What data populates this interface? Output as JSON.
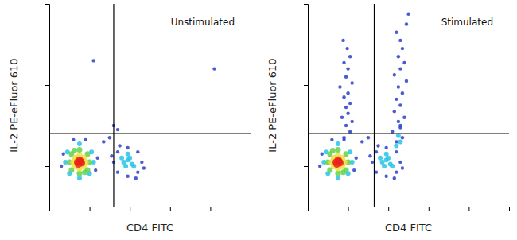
{
  "chart_data": [
    {
      "type": "scatter",
      "annotation": "Unstimulated",
      "xlabel": "CD4 FITC",
      "ylabel": "IL-2 PE-eFluor 610",
      "xlim": [
        0,
        5
      ],
      "ylim": [
        0,
        5
      ],
      "xticks": [
        1,
        2,
        3,
        4,
        5
      ],
      "yticks": [
        1,
        2,
        3,
        4,
        5
      ],
      "tick_labels": false,
      "quadrant": {
        "x": 1.6,
        "y": 1.8
      },
      "marker": "circle",
      "series": [
        {
          "color": "#2b3fc9",
          "x": [
            1.6,
            2.3,
            1.95,
            1.95,
            1.7,
            2.2,
            1.7,
            2.2,
            1.55,
            2.35,
            1.75,
            2.15,
            0.3,
            1.2,
            0.6,
            0.9,
            0.35,
            1.15,
            1.5,
            1.7,
            1.35,
            1.1,
            4.1,
            1.6
          ],
          "values": [
            1.1,
            1.1,
            1.45,
            0.75,
            1.35,
            1.35,
            0.85,
            0.85,
            1.25,
            0.95,
            1.5,
            0.7,
            1.0,
            1.2,
            1.65,
            1.65,
            1.3,
            0.9,
            1.7,
            1.9,
            1.6,
            3.6,
            3.4,
            2.0
          ]
        },
        {
          "color": "#27c3e6",
          "x": [
            0.4,
            1.1,
            0.75,
            0.75,
            0.45,
            1.05,
            0.5,
            1.0,
            1.85,
            1.95,
            2.05,
            1.9,
            2.0,
            1.95,
            1.8,
            2.1
          ],
          "values": [
            1.1,
            1.1,
            1.55,
            0.7,
            1.35,
            1.35,
            0.82,
            0.82,
            1.1,
            1.15,
            1.05,
            1.0,
            1.2,
            1.3,
            1.2,
            1.0
          ]
        },
        {
          "color": "#5fd24c",
          "x": [
            0.5,
            1.0,
            0.75,
            0.75,
            0.55,
            0.95,
            0.55,
            0.95,
            0.62,
            0.88
          ],
          "values": [
            1.1,
            1.1,
            1.4,
            0.82,
            1.3,
            1.3,
            0.9,
            0.9,
            1.38,
            0.85
          ]
        },
        {
          "color": "#f3df3a",
          "x": [
            0.6,
            0.9,
            0.75,
            0.75,
            0.65,
            0.85,
            0.65,
            0.85
          ],
          "values": [
            1.1,
            1.1,
            1.25,
            0.95,
            1.2,
            1.2,
            1.0,
            1.0
          ]
        },
        {
          "color": "#e8231d",
          "x": [
            0.7,
            0.75,
            0.8,
            0.72,
            0.78
          ],
          "values": [
            1.1,
            1.15,
            1.08,
            1.05,
            1.12
          ]
        }
      ]
    },
    {
      "type": "scatter",
      "annotation": "Stimulated",
      "xlabel": "CD4 FITC",
      "ylabel": "IL-2 PE-eFluor 610",
      "xlim": [
        0,
        5
      ],
      "ylim": [
        0,
        5
      ],
      "xticks": [
        1,
        2,
        3,
        4,
        5
      ],
      "yticks": [
        1,
        2,
        3,
        4,
        5
      ],
      "tick_labels": false,
      "quadrant": {
        "x": 1.65,
        "y": 1.8
      },
      "marker": "circle",
      "series": [
        {
          "color": "#2b3fc9",
          "x": [
            1.6,
            2.3,
            1.95,
            1.95,
            1.7,
            2.2,
            1.7,
            2.2,
            1.55,
            2.35,
            1.75,
            2.15,
            0.3,
            1.2,
            0.6,
            0.9,
            0.35,
            1.15,
            1.5,
            1.35,
            0.9,
            1.05,
            0.95,
            1.1,
            0.85,
            1.0,
            0.95,
            1.05,
            0.9,
            1.0,
            0.8,
            1.1,
            0.95,
            1.0,
            0.9,
            1.05,
            0.98,
            0.88,
            2.2,
            2.35,
            2.1,
            2.3,
            2.25,
            2.4,
            2.15,
            2.3,
            2.2,
            2.35,
            2.25,
            2.45,
            2.15,
            2.3,
            2.4,
            2.25,
            2.35,
            2.3,
            2.2,
            2.45,
            2.5,
            2.3
          ],
          "values": [
            1.1,
            1.1,
            1.45,
            0.75,
            1.35,
            1.35,
            0.85,
            0.85,
            1.25,
            0.95,
            1.5,
            0.7,
            1.0,
            1.2,
            1.65,
            1.65,
            1.3,
            0.9,
            1.7,
            1.6,
            1.7,
            1.85,
            2.0,
            2.1,
            2.2,
            2.3,
            2.45,
            2.55,
            2.7,
            2.8,
            2.95,
            3.05,
            3.2,
            3.4,
            3.55,
            3.7,
            3.9,
            4.1,
            1.6,
            1.7,
            1.85,
            1.95,
            2.1,
            2.2,
            2.35,
            2.5,
            2.65,
            2.8,
            2.95,
            3.1,
            3.25,
            3.4,
            3.55,
            3.7,
            3.9,
            4.1,
            4.3,
            4.5,
            4.75,
            2.0
          ]
        },
        {
          "color": "#27c3e6",
          "x": [
            0.4,
            1.1,
            0.75,
            0.75,
            0.45,
            1.05,
            0.5,
            1.0,
            1.85,
            1.95,
            2.05,
            1.9,
            2.0,
            1.95,
            1.8,
            2.1,
            2.2,
            2.3,
            2.25
          ],
          "values": [
            1.1,
            1.1,
            1.55,
            0.7,
            1.35,
            1.35,
            0.82,
            0.82,
            1.1,
            1.15,
            1.05,
            1.0,
            1.2,
            1.3,
            1.2,
            1.0,
            1.5,
            1.6,
            1.75
          ]
        },
        {
          "color": "#5fd24c",
          "x": [
            0.5,
            1.0,
            0.75,
            0.75,
            0.55,
            0.95,
            0.55,
            0.95,
            0.62,
            0.88
          ],
          "values": [
            1.1,
            1.1,
            1.4,
            0.82,
            1.3,
            1.3,
            0.9,
            0.9,
            1.38,
            0.85
          ]
        },
        {
          "color": "#f3df3a",
          "x": [
            0.6,
            0.9,
            0.75,
            0.75,
            0.65,
            0.85,
            0.65,
            0.85
          ],
          "values": [
            1.1,
            1.1,
            1.25,
            0.95,
            1.2,
            1.2,
            1.0,
            1.0
          ]
        },
        {
          "color": "#e8231d",
          "x": [
            0.7,
            0.75,
            0.8,
            0.72,
            0.78
          ],
          "values": [
            1.1,
            1.15,
            1.08,
            1.05,
            1.12
          ]
        }
      ]
    }
  ]
}
